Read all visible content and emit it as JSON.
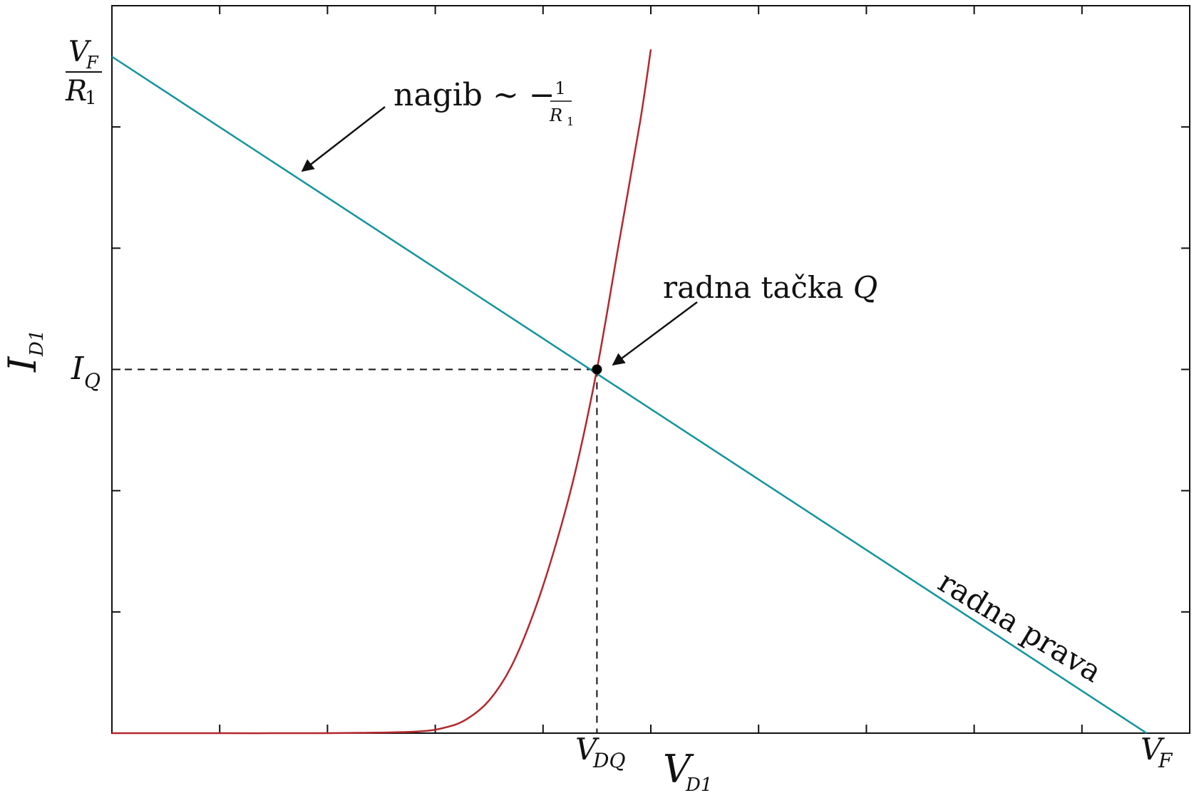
{
  "colors": {
    "load_line": "#13939c",
    "diode_curve": "#b3282e",
    "axes": "#111111",
    "q_point": "#000000"
  },
  "chart_data": {
    "type": "line",
    "title": "",
    "x_axis": {
      "label_main": "V",
      "label_sub": "D1",
      "range": [
        0,
        1.0
      ],
      "minor_ticks": 10,
      "labels": {
        "vdq": {
          "main": "V",
          "sub": "DQ",
          "value": 0.45
        },
        "vf": {
          "main": "V",
          "sub": "F",
          "value": 0.96
        }
      }
    },
    "y_axis": {
      "label_main": "I",
      "label_sub": "D1",
      "range": [
        0,
        1.0
      ],
      "minor_ticks": 6,
      "labels": {
        "iq": {
          "main": "I",
          "sub": "Q",
          "value": 0.5
        },
        "vf_over_r1": {
          "num_main": "V",
          "num_sub": "F",
          "den_main": "R",
          "den_sub": "1",
          "value": 0.93
        }
      }
    },
    "series": [
      {
        "name": "radna prava",
        "kind": "load_line",
        "x": [
          0,
          0.96
        ],
        "y": [
          0.93,
          0
        ]
      },
      {
        "name": "",
        "kind": "diode_curve",
        "x": [
          0.0,
          0.1,
          0.2,
          0.28,
          0.31,
          0.33,
          0.35,
          0.37,
          0.39,
          0.41,
          0.43,
          0.45,
          0.47,
          0.49,
          0.5
        ],
        "y": [
          0.0,
          0.0,
          0.0,
          0.002,
          0.008,
          0.02,
          0.045,
          0.09,
          0.16,
          0.25,
          0.36,
          0.5,
          0.67,
          0.84,
          0.94
        ]
      }
    ],
    "q_point": {
      "x": 0.45,
      "y": 0.5
    },
    "annotations": {
      "slope": {
        "text": "nagib ~ −",
        "frac_num": "1",
        "frac_den_main": "R",
        "frac_den_sub": "1"
      },
      "q_label": {
        "text": "radna tačka ",
        "italic": "Q"
      },
      "line_label": "radna prava"
    }
  }
}
